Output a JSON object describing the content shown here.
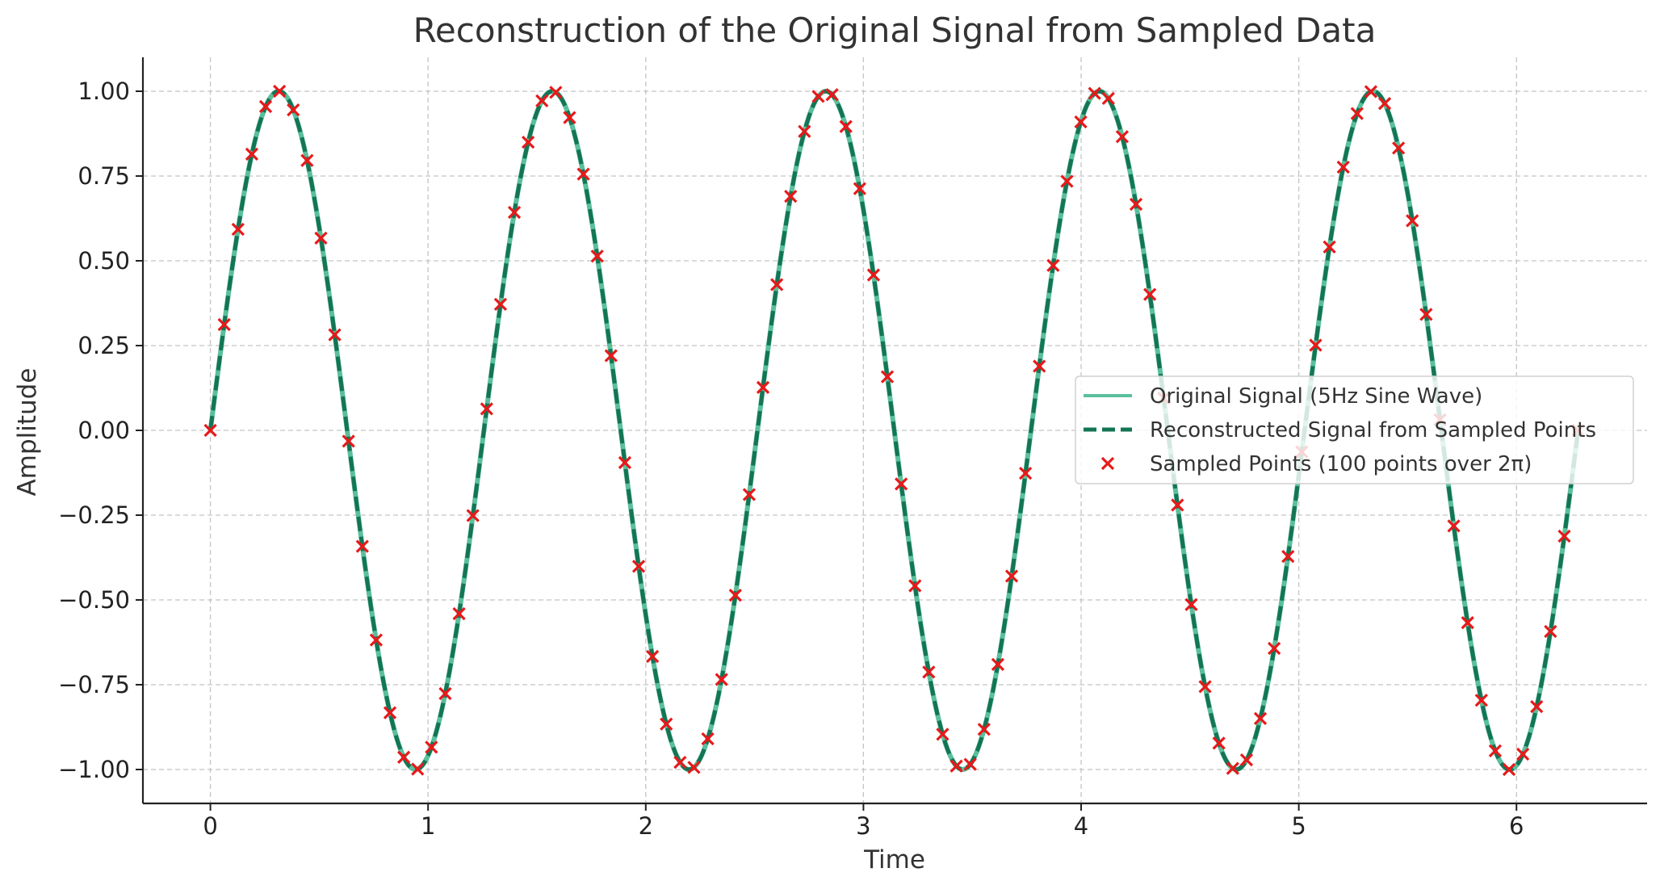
{
  "chart_data": {
    "type": "line",
    "title": "Reconstruction of the Original Signal from Sampled Data",
    "xlabel": "Time",
    "ylabel": "Amplitude",
    "xlim": [
      -0.31,
      6.6
    ],
    "ylim": [
      -1.1,
      1.1
    ],
    "xticks": [
      0,
      1,
      2,
      3,
      4,
      5,
      6
    ],
    "xtick_labels": [
      "0",
      "1",
      "2",
      "3",
      "4",
      "5",
      "6"
    ],
    "yticks": [
      1.0,
      0.75,
      0.5,
      0.25,
      0.0,
      -0.25,
      -0.5,
      -0.75,
      -1.0
    ],
    "ytick_labels": [
      "1.00",
      "0.75",
      "0.50",
      "0.25",
      "0.00",
      "−0.25",
      "−0.50",
      "−0.75",
      "−1.00"
    ],
    "grid": true,
    "legend_position": "center-right",
    "series": [
      {
        "name": "Original Signal (5Hz Sine Wave)",
        "kind": "line",
        "style": "solid",
        "color": "#5bbf9c",
        "function": "sin(5t)",
        "t_range": [
          0,
          6.2832
        ]
      },
      {
        "name": "Reconstructed Signal from Sampled Points",
        "kind": "line",
        "style": "dashed",
        "color": "#147556",
        "function": "sin(5t)",
        "t_range": [
          0,
          6.2832
        ]
      },
      {
        "name": "Sampled Points (100 points over 2π)",
        "kind": "scatter",
        "marker": "x",
        "color": "#e8191a",
        "count": 100,
        "t_range": [
          0,
          6.2832
        ],
        "function": "sin(5t)"
      }
    ]
  }
}
